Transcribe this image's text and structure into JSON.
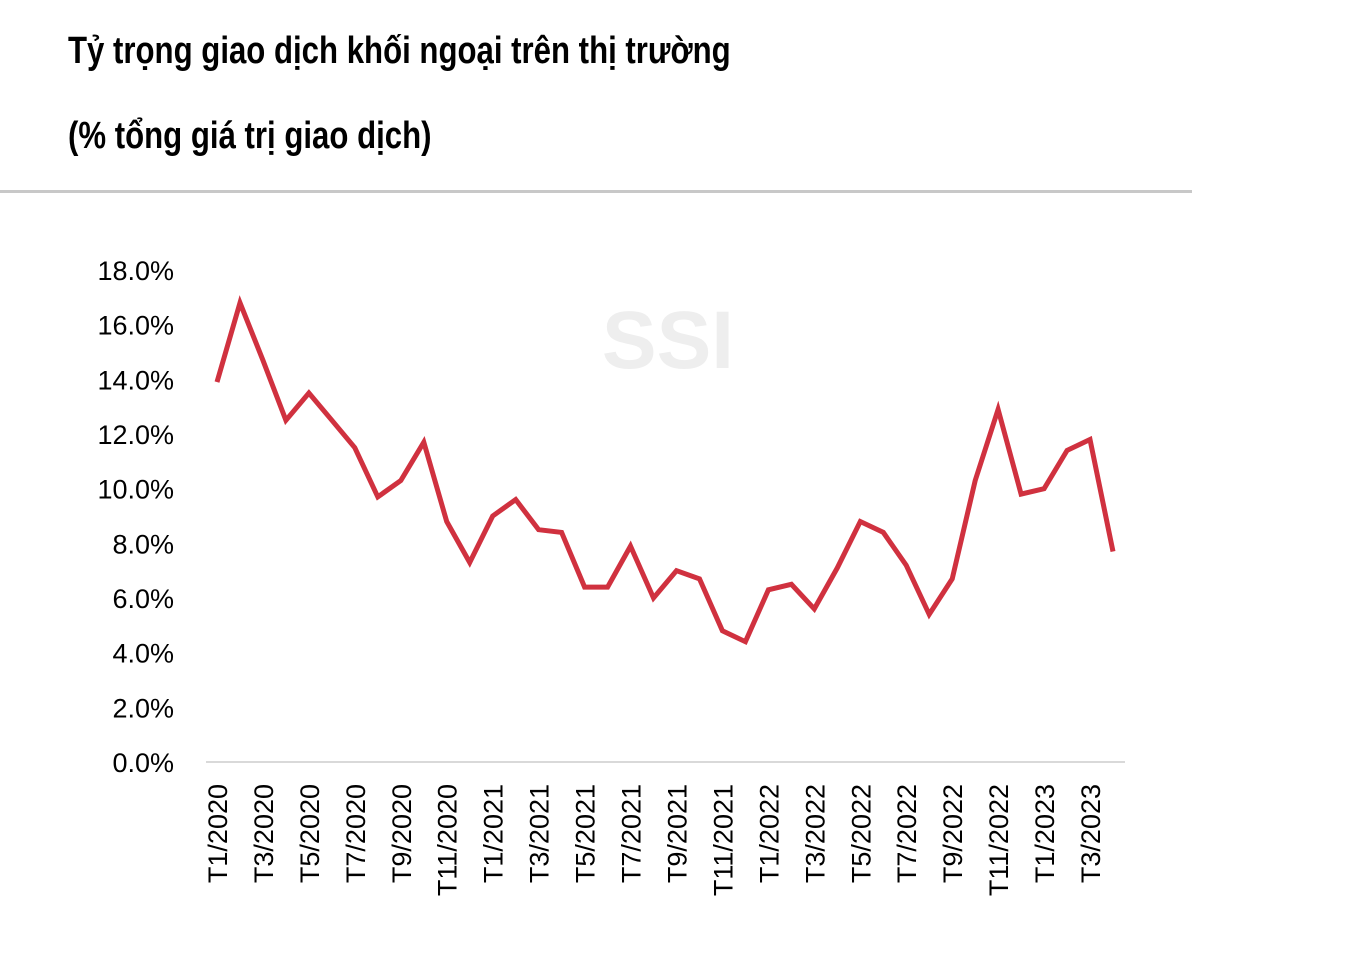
{
  "header": {
    "title_line1": "Tỷ trọng giao dịch khối ngoại trên thị trường",
    "title_line2": "(% tổng giá trị giao dịch)"
  },
  "watermark": "SSI",
  "colors": {
    "line": "#d0313f",
    "axis": "#d9d9d9",
    "rule": "#c8c8c8"
  },
  "chart_data": {
    "type": "line",
    "title": "Tỷ trọng giao dịch khối ngoại trên thị trường (% tổng giá trị giao dịch)",
    "xlabel": "",
    "ylabel": "",
    "ylim": [
      0,
      18
    ],
    "yticks": [
      "0.0%",
      "2.0%",
      "4.0%",
      "6.0%",
      "8.0%",
      "10.0%",
      "12.0%",
      "14.0%",
      "16.0%",
      "18.0%"
    ],
    "grid": false,
    "legend": "none",
    "x": [
      "T1/2020",
      "T2/2020",
      "T3/2020",
      "T4/2020",
      "T5/2020",
      "T6/2020",
      "T7/2020",
      "T8/2020",
      "T9/2020",
      "T10/2020",
      "T11/2020",
      "T12/2020",
      "T1/2021",
      "T2/2021",
      "T3/2021",
      "T4/2021",
      "T5/2021",
      "T6/2021",
      "T7/2021",
      "T8/2021",
      "T9/2021",
      "T10/2021",
      "T11/2021",
      "T12/2021",
      "T1/2022",
      "T2/2022",
      "T3/2022",
      "T4/2022",
      "T5/2022",
      "T6/2022",
      "T7/2022",
      "T8/2022",
      "T9/2022",
      "T10/2022",
      "T11/2022",
      "T12/2022",
      "T1/2023",
      "T2/2023",
      "T3/2023",
      "T4/2023"
    ],
    "xtick_labels": [
      "T1/2020",
      "T3/2020",
      "T5/2020",
      "T7/2020",
      "T9/2020",
      "T11/2020",
      "T1/2021",
      "T3/2021",
      "T5/2021",
      "T7/2021",
      "T9/2021",
      "T11/2021",
      "T1/2022",
      "T3/2022",
      "T5/2022",
      "T7/2022",
      "T9/2022",
      "T11/2022",
      "T1/2023",
      "T3/2023"
    ],
    "series": [
      {
        "values": [
          13.9,
          16.8,
          14.7,
          12.5,
          13.5,
          12.5,
          11.5,
          9.7,
          10.3,
          11.7,
          8.8,
          7.3,
          9.0,
          9.6,
          8.5,
          8.4,
          6.4,
          6.4,
          7.9,
          6.0,
          7.0,
          6.7,
          4.8,
          4.4,
          6.3,
          6.5,
          5.6,
          7.1,
          8.8,
          8.4,
          7.2,
          5.4,
          6.7,
          10.3,
          12.9,
          9.8,
          10.0,
          11.4,
          11.8,
          7.7
        ]
      }
    ]
  }
}
